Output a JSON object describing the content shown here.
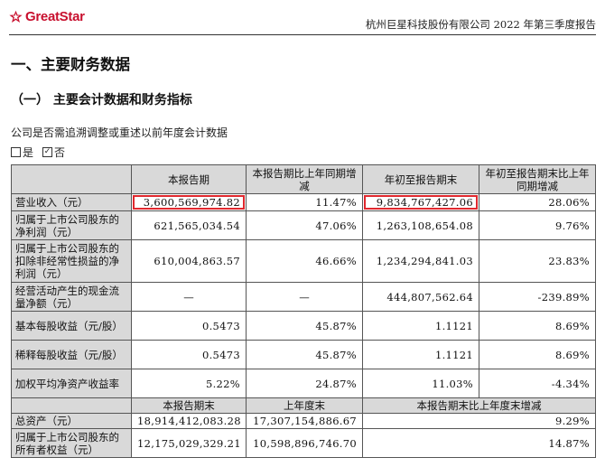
{
  "header": {
    "logo_text": "GreatStar",
    "report_title": "杭州巨星科技股份有限公司 2022 年第三季度报告",
    "brand_color": "#c8102e"
  },
  "section_title": "一、主要财务数据",
  "subsection_title": "（一）  主要会计数据和财务指标",
  "question": "公司是否需追溯调整或重述以前年度会计数据",
  "options": [
    {
      "label": "是",
      "checked": false
    },
    {
      "label": "否",
      "checked": true
    }
  ],
  "table1": {
    "headers": [
      "",
      "本报告期",
      "本报告期比上年同期增减",
      "年初至报告期末",
      "年初至报告期末比上年同期增减"
    ],
    "rows": [
      {
        "label": "营业收入（元）",
        "c1": "3,600,569,974.82",
        "c2": "11.47%",
        "c3": "9,834,767,427.06",
        "c4": "28.06%"
      },
      {
        "label": "归属于上市公司股东的净利润（元）",
        "c1": "621,565,034.54",
        "c2": "47.06%",
        "c3": "1,263,108,654.08",
        "c4": "9.76%"
      },
      {
        "label": "归属于上市公司股东的扣除非经常性损益的净利润（元）",
        "c1": "610,004,863.57",
        "c2": "46.66%",
        "c3": "1,234,294,841.03",
        "c4": "23.83%"
      },
      {
        "label": "经营活动产生的现金流量净额（元）",
        "c1": "—",
        "c2": "—",
        "c3": "444,807,562.64",
        "c4": "-239.89%"
      },
      {
        "label": "基本每股收益（元/股）",
        "c1": "0.5473",
        "c2": "45.87%",
        "c3": "1.1121",
        "c4": "8.69%"
      },
      {
        "label": "稀释每股收益（元/股）",
        "c1": "0.5473",
        "c2": "45.87%",
        "c3": "1.1121",
        "c4": "8.69%"
      },
      {
        "label": "加权平均净资产收益率",
        "c1": "5.22%",
        "c2": "24.87%",
        "c3": "11.03%",
        "c4": "-4.34%"
      }
    ]
  },
  "table2": {
    "headers": [
      "",
      "本报告期末",
      "上年度末",
      "本报告期末比上年度末增减"
    ],
    "rows": [
      {
        "label": "总资产（元）",
        "c1": "18,914,412,083.28",
        "c2": "17,307,154,886.67",
        "c3": "9.29%"
      },
      {
        "label": "归属于上市公司股东的所有者权益（元）",
        "c1": "12,175,029,329.21",
        "c2": "10,598,896,746.70",
        "c3": "14.87%"
      }
    ]
  },
  "highlight_color": "#e0282e"
}
